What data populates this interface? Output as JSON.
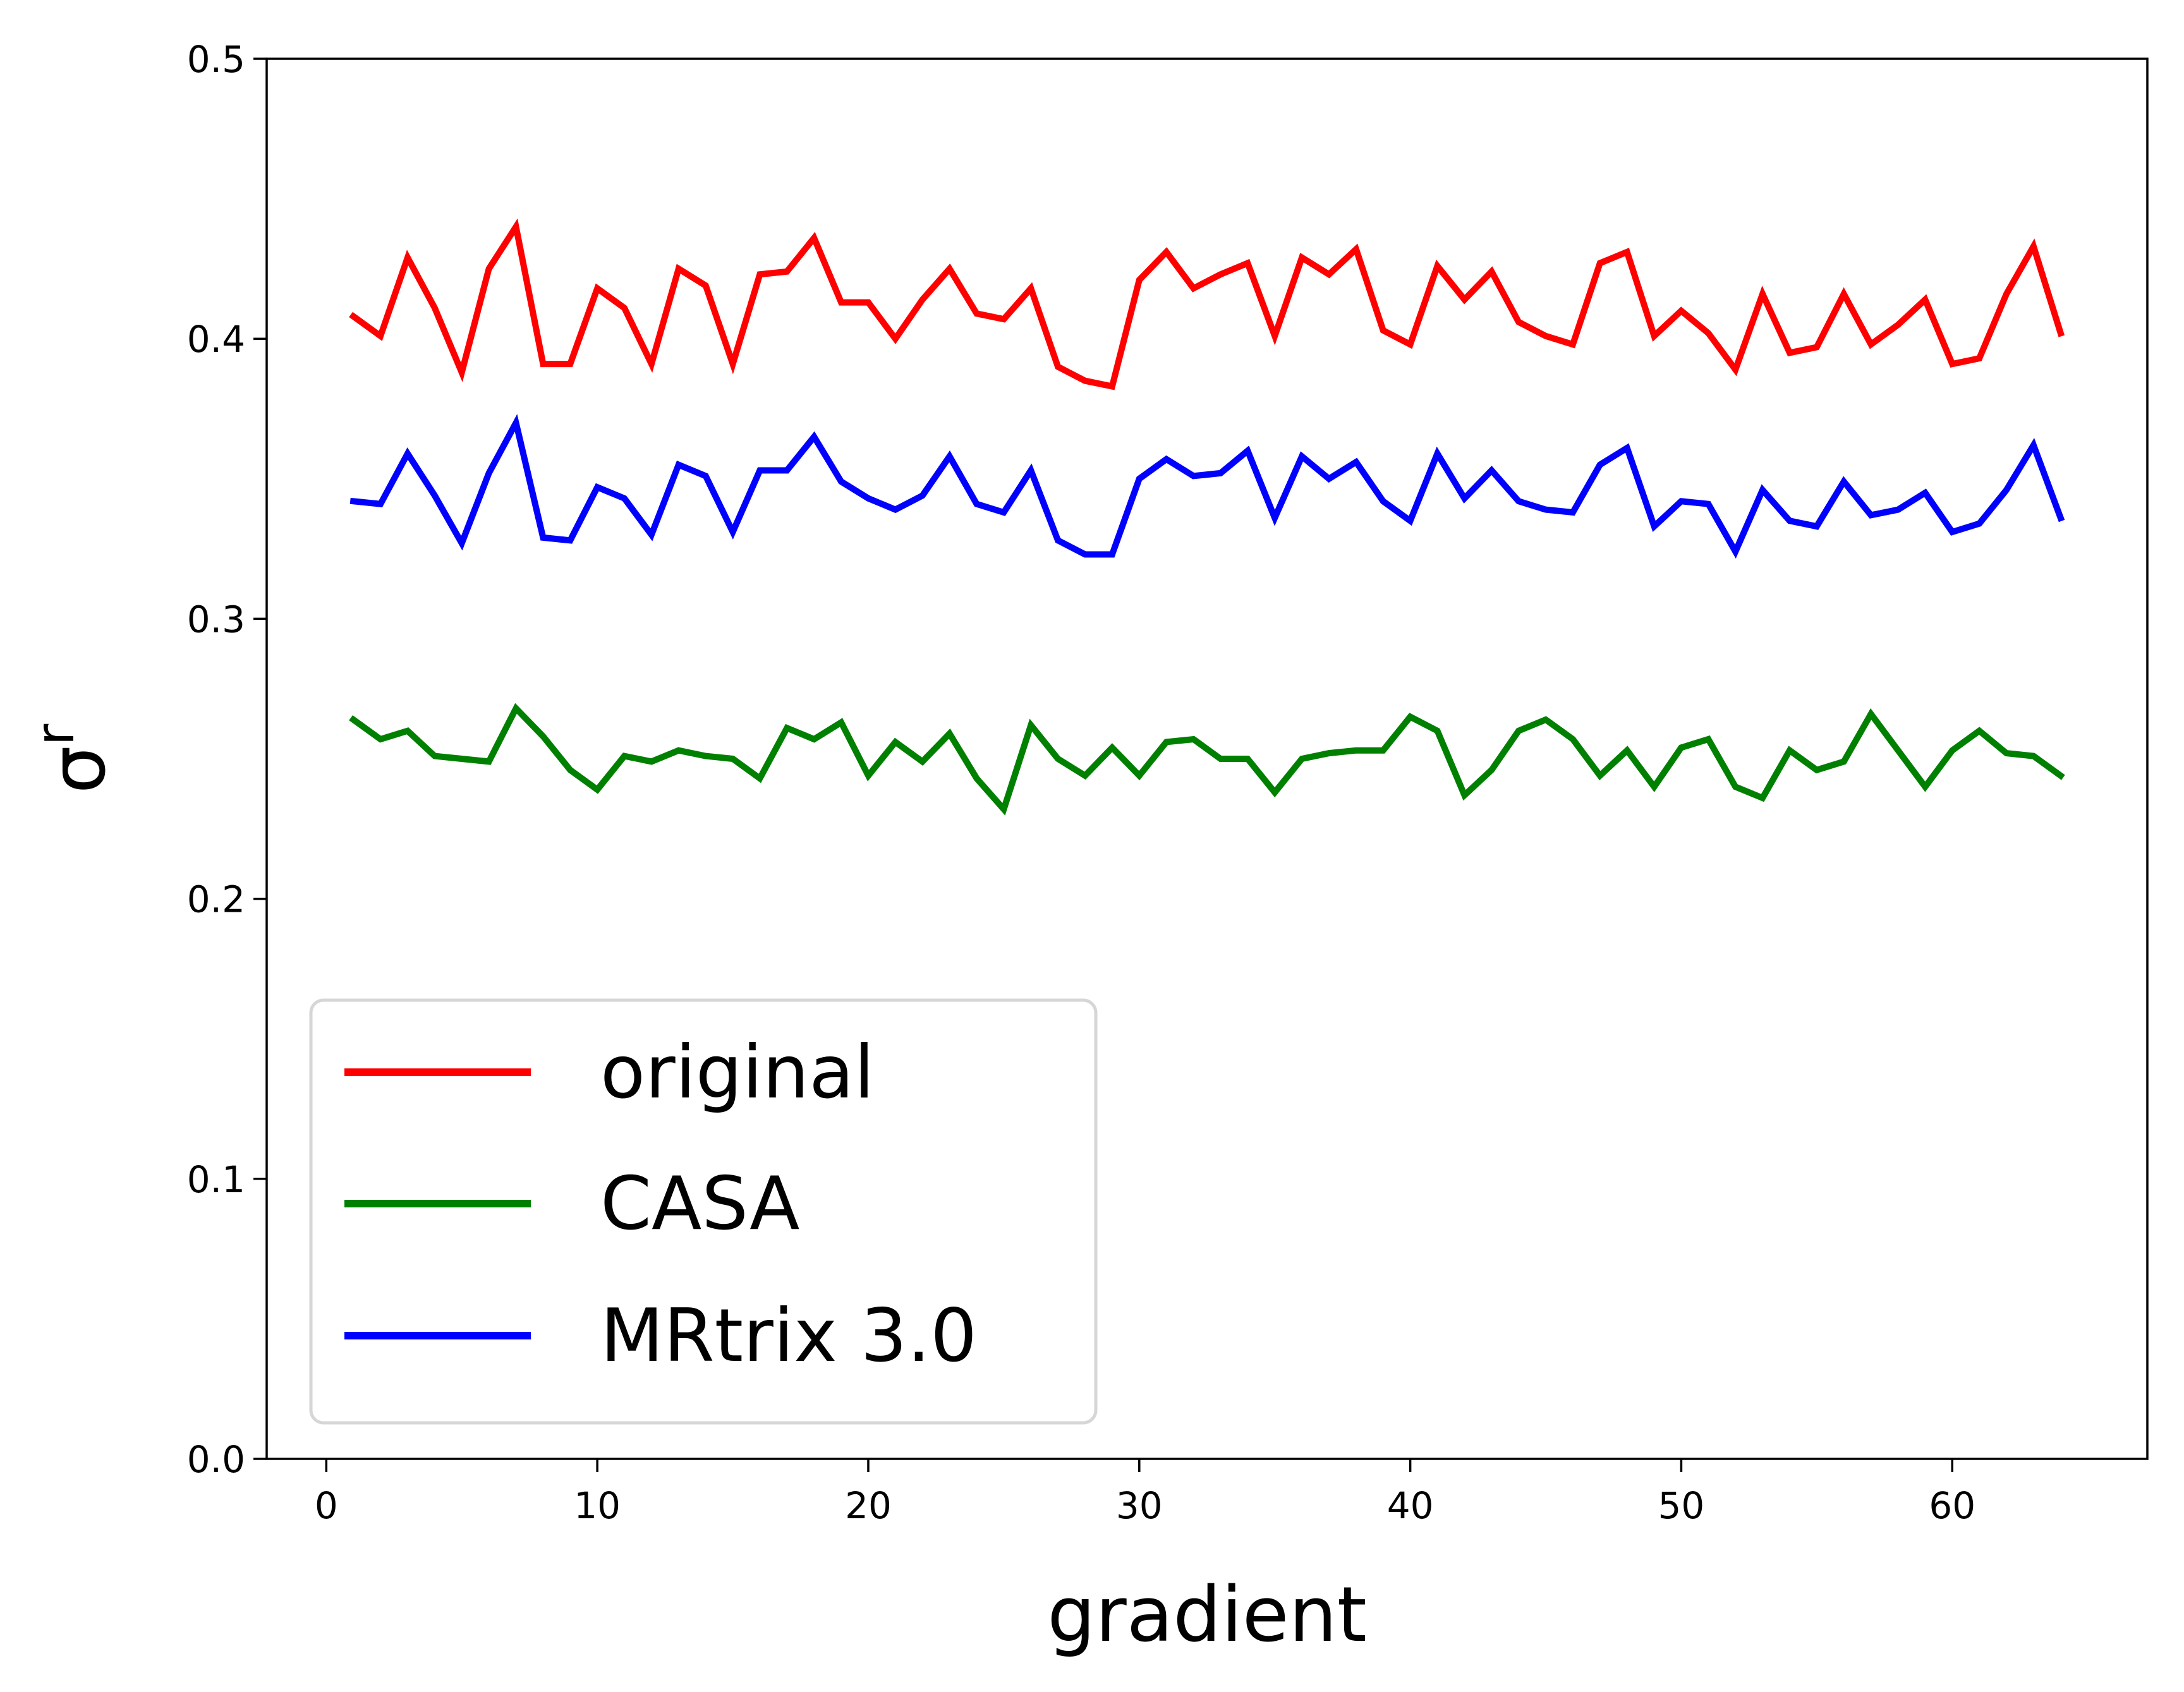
{
  "chart_data": {
    "type": "line",
    "xlabel": "gradient",
    "ylabel": "σ",
    "ylabel_superscript": "r",
    "xlim": [
      -2.2,
      67.2
    ],
    "ylim": [
      0.0,
      0.5
    ],
    "xticks": [
      0,
      10,
      20,
      30,
      40,
      50,
      60
    ],
    "yticks": [
      0.0,
      0.1,
      0.2,
      0.3,
      0.4,
      0.5
    ],
    "xtick_labels": [
      "0",
      "10",
      "20",
      "30",
      "40",
      "50",
      "60"
    ],
    "ytick_labels": [
      "0.0",
      "0.1",
      "0.2",
      "0.3",
      "0.4",
      "0.5"
    ],
    "grid": false,
    "legend_position": "lower-left",
    "x": [
      1,
      2,
      3,
      4,
      5,
      6,
      7,
      8,
      9,
      10,
      11,
      12,
      13,
      14,
      15,
      16,
      17,
      18,
      19,
      20,
      21,
      22,
      23,
      24,
      25,
      26,
      27,
      28,
      29,
      30,
      31,
      32,
      33,
      34,
      35,
      36,
      37,
      38,
      39,
      40,
      41,
      42,
      43,
      44,
      45,
      46,
      47,
      48,
      49,
      50,
      51,
      52,
      53,
      54,
      55,
      56,
      57,
      58,
      59,
      60,
      61,
      62,
      63,
      64
    ],
    "series": [
      {
        "name": "original",
        "color": "#ff0000",
        "values": [
          0.408,
          0.401,
          0.429,
          0.411,
          0.388,
          0.425,
          0.44,
          0.391,
          0.391,
          0.418,
          0.411,
          0.391,
          0.425,
          0.419,
          0.391,
          0.423,
          0.424,
          0.436,
          0.413,
          0.413,
          0.4,
          0.414,
          0.425,
          0.409,
          0.407,
          0.418,
          0.39,
          0.385,
          0.383,
          0.421,
          0.431,
          0.418,
          0.423,
          0.427,
          0.401,
          0.429,
          0.423,
          0.432,
          0.403,
          0.398,
          0.426,
          0.414,
          0.424,
          0.406,
          0.401,
          0.398,
          0.427,
          0.431,
          0.401,
          0.41,
          0.402,
          0.389,
          0.416,
          0.395,
          0.397,
          0.416,
          0.398,
          0.405,
          0.414,
          0.391,
          0.393,
          0.416,
          0.433,
          0.402
        ]
      },
      {
        "name": "CASA",
        "color": "#008000",
        "values": [
          0.264,
          0.257,
          0.26,
          0.251,
          0.25,
          0.249,
          0.268,
          0.258,
          0.246,
          0.239,
          0.251,
          0.249,
          0.253,
          0.251,
          0.25,
          0.243,
          0.261,
          0.257,
          0.263,
          0.244,
          0.256,
          0.249,
          0.259,
          0.243,
          0.232,
          0.262,
          0.25,
          0.244,
          0.254,
          0.244,
          0.256,
          0.257,
          0.25,
          0.25,
          0.238,
          0.25,
          0.252,
          0.253,
          0.253,
          0.265,
          0.26,
          0.237,
          0.246,
          0.26,
          0.264,
          0.257,
          0.244,
          0.253,
          0.24,
          0.254,
          0.257,
          0.24,
          0.236,
          0.253,
          0.246,
          0.249,
          0.266,
          0.253,
          0.24,
          0.253,
          0.26,
          0.252,
          0.251,
          0.244
        ]
      },
      {
        "name": "MRtrix 3.0",
        "color": "#0000ff",
        "values": [
          0.342,
          0.341,
          0.359,
          0.344,
          0.327,
          0.352,
          0.37,
          0.329,
          0.328,
          0.347,
          0.343,
          0.33,
          0.355,
          0.351,
          0.331,
          0.353,
          0.353,
          0.365,
          0.349,
          0.343,
          0.339,
          0.344,
          0.358,
          0.341,
          0.338,
          0.353,
          0.328,
          0.323,
          0.323,
          0.35,
          0.357,
          0.351,
          0.352,
          0.36,
          0.336,
          0.358,
          0.35,
          0.356,
          0.342,
          0.335,
          0.359,
          0.343,
          0.353,
          0.342,
          0.339,
          0.338,
          0.355,
          0.361,
          0.333,
          0.342,
          0.341,
          0.324,
          0.346,
          0.335,
          0.333,
          0.349,
          0.337,
          0.339,
          0.345,
          0.331,
          0.334,
          0.346,
          0.362,
          0.336
        ]
      }
    ]
  }
}
